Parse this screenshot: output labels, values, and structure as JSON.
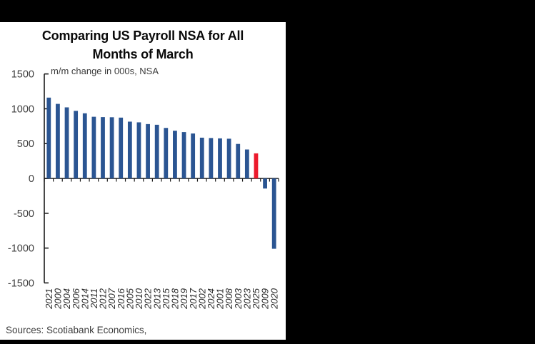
{
  "window": {
    "background": "#000000",
    "panel_background": "#ffffff"
  },
  "chart_data": {
    "type": "bar",
    "title": "Comparing US Payroll NSA for All Months of March",
    "title_lines": [
      "Comparing US Payroll NSA for All",
      "Months of March"
    ],
    "axis_note": "m/m change in 000s, NSA",
    "categories": [
      "2021",
      "2000",
      "2004",
      "2006",
      "2014",
      "2011",
      "2012",
      "2007",
      "2016",
      "2005",
      "2010",
      "2022",
      "2013",
      "2015",
      "2018",
      "2019",
      "2017",
      "2002",
      "2024",
      "2001",
      "2008",
      "2003",
      "2023",
      "2025",
      "2009",
      "2020"
    ],
    "values": [
      1160,
      1070,
      1020,
      970,
      935,
      885,
      880,
      878,
      873,
      815,
      805,
      780,
      770,
      725,
      685,
      665,
      645,
      585,
      580,
      575,
      570,
      495,
      415,
      360,
      -145,
      -1010
    ],
    "highlight_category": "2025",
    "bar_color": "#2B5592",
    "highlight_color": "#EC1B2D",
    "axis_color": "#1a1a1a",
    "tick_label_color": "#3d3d3d",
    "ylim": [
      -1500,
      1500
    ],
    "yticks": [
      1500,
      1000,
      500,
      0,
      -500,
      -1000,
      -1500
    ],
    "grid": false,
    "legend": "none",
    "x_label_rotation": -90
  },
  "footer": {
    "source": "Sources: Scotiabank Economics,"
  }
}
